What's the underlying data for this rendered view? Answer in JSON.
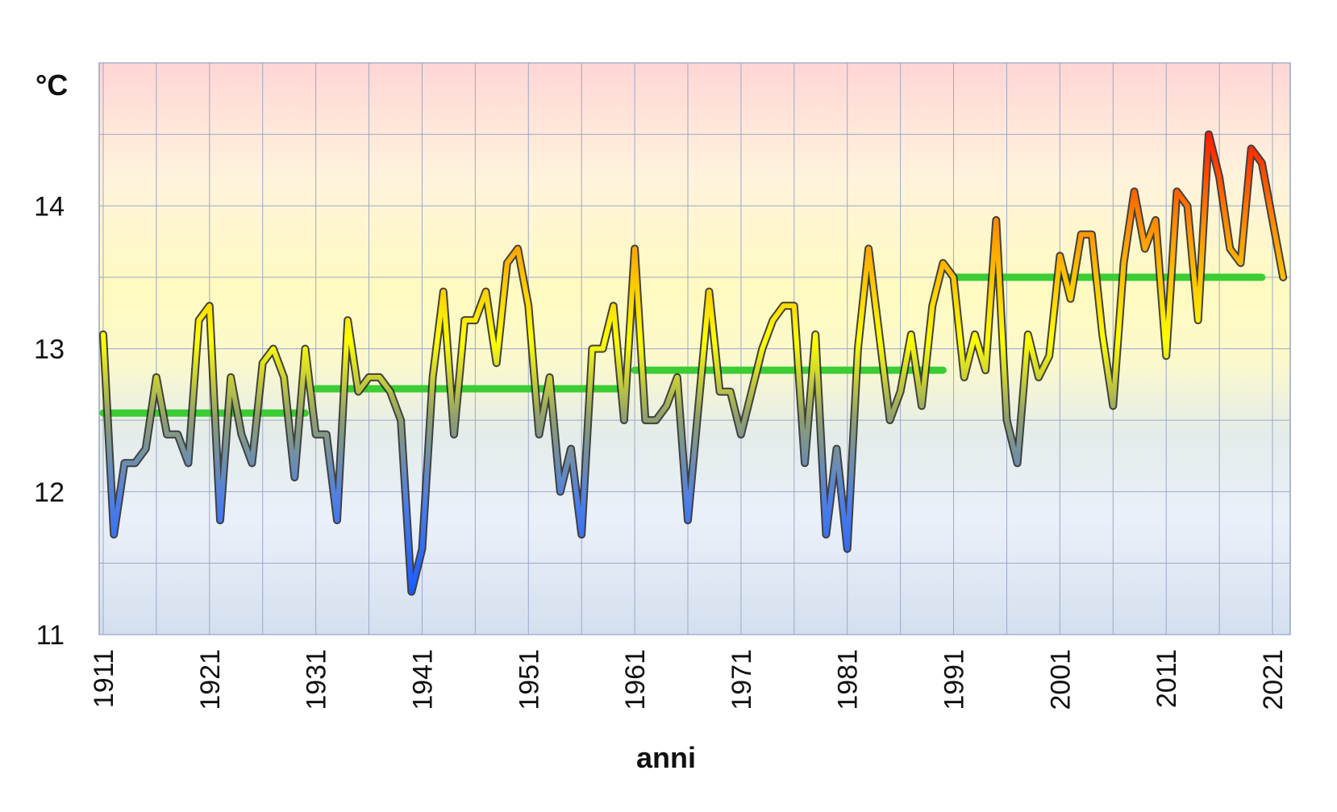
{
  "chart_data": {
    "type": "line",
    "title": "",
    "xlabel": "anni",
    "ylabel": "°C",
    "xlim": [
      1911,
      2021
    ],
    "ylim": [
      11,
      15
    ],
    "y_ticks": [
      11,
      12,
      13,
      14
    ],
    "x_ticks": [
      1911,
      1921,
      1931,
      1941,
      1951,
      1961,
      1971,
      1981,
      1991,
      2001,
      2011,
      2021
    ],
    "grid": true,
    "background": "vertical gradient: blue (cold) at bottom to yellow to red (hot) at top",
    "series": [
      {
        "values_style": "line colored by temperature (blue low, yellow mid, red high)",
        "x_start": 1911,
        "y": [
          13.1,
          11.7,
          12.2,
          12.2,
          12.3,
          12.8,
          12.4,
          12.4,
          12.2,
          13.2,
          13.3,
          11.8,
          12.8,
          12.4,
          12.2,
          12.9,
          13.0,
          12.8,
          12.1,
          13.0,
          12.4,
          12.4,
          11.8,
          13.2,
          12.7,
          12.8,
          12.8,
          12.7,
          12.5,
          11.3,
          11.6,
          12.8,
          13.4,
          12.4,
          13.2,
          13.2,
          13.4,
          12.9,
          13.6,
          13.7,
          13.3,
          12.4,
          12.8,
          12.0,
          12.3,
          11.7,
          13.0,
          13.0,
          13.3,
          12.5,
          13.7,
          12.5,
          12.5,
          12.6,
          12.8,
          11.8,
          12.6,
          13.4,
          12.7,
          12.7,
          12.4,
          12.7,
          13.0,
          13.2,
          13.3,
          13.3,
          12.2,
          13.1,
          11.7,
          12.3,
          11.6,
          13.0,
          13.7,
          13.1,
          12.5,
          12.7,
          13.1,
          12.6,
          13.3,
          13.6,
          13.5,
          12.8,
          13.1,
          12.85,
          13.9,
          12.5,
          12.2,
          13.1,
          12.8,
          12.95,
          13.65,
          13.35,
          13.8,
          13.8,
          13.1,
          12.6,
          13.6,
          14.1,
          13.7,
          13.9,
          12.95,
          14.1,
          14.0,
          13.2,
          14.5,
          14.2,
          13.7,
          13.6,
          14.4,
          14.3,
          13.9,
          13.5
        ]
      }
    ],
    "decade_means": [
      {
        "x0": 1911,
        "x1": 1930,
        "y": 12.55
      },
      {
        "x0": 1931,
        "x1": 1960,
        "y": 12.72
      },
      {
        "x0": 1961,
        "x1": 1990,
        "y": 12.85
      },
      {
        "x0": 1991,
        "x1": 2020,
        "y": 13.5
      }
    ],
    "mean_color": "#3ccc34",
    "colors": {
      "cold": "#1a5cff",
      "mid": "#ffff00",
      "hot": "#ff1a00"
    }
  }
}
